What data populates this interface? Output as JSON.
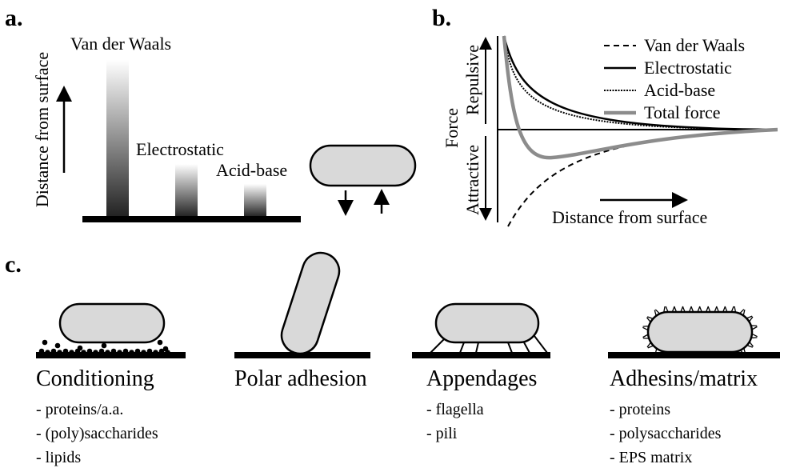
{
  "panel_a": {
    "label": "a.",
    "y_axis_label": "Distance from surface",
    "bars": [
      "Van der Waals",
      "Electrostatic",
      "Acid-base"
    ]
  },
  "panel_b": {
    "label": "b.",
    "y_axis_label": "Force",
    "y_axis_top": "Repulsive",
    "y_axis_bottom": "Attractive",
    "x_axis_label": "Distance from surface",
    "legend": [
      "Van der Waals",
      "Electrostatic",
      "Acid-base",
      "Total force"
    ]
  },
  "panel_c": {
    "label": "c.",
    "mechanisms": [
      {
        "title": "Conditioning",
        "items": [
          "- proteins/a.a.",
          "- (poly)saccharides",
          "- lipids"
        ]
      },
      {
        "title": "Polar adhesion",
        "items": []
      },
      {
        "title": "Appendages",
        "items": [
          "- flagella",
          "- pili"
        ]
      },
      {
        "title": "Adhesins/matrix",
        "items": [
          "- proteins",
          "- polysaccharides",
          "- EPS matrix"
        ]
      }
    ]
  }
}
